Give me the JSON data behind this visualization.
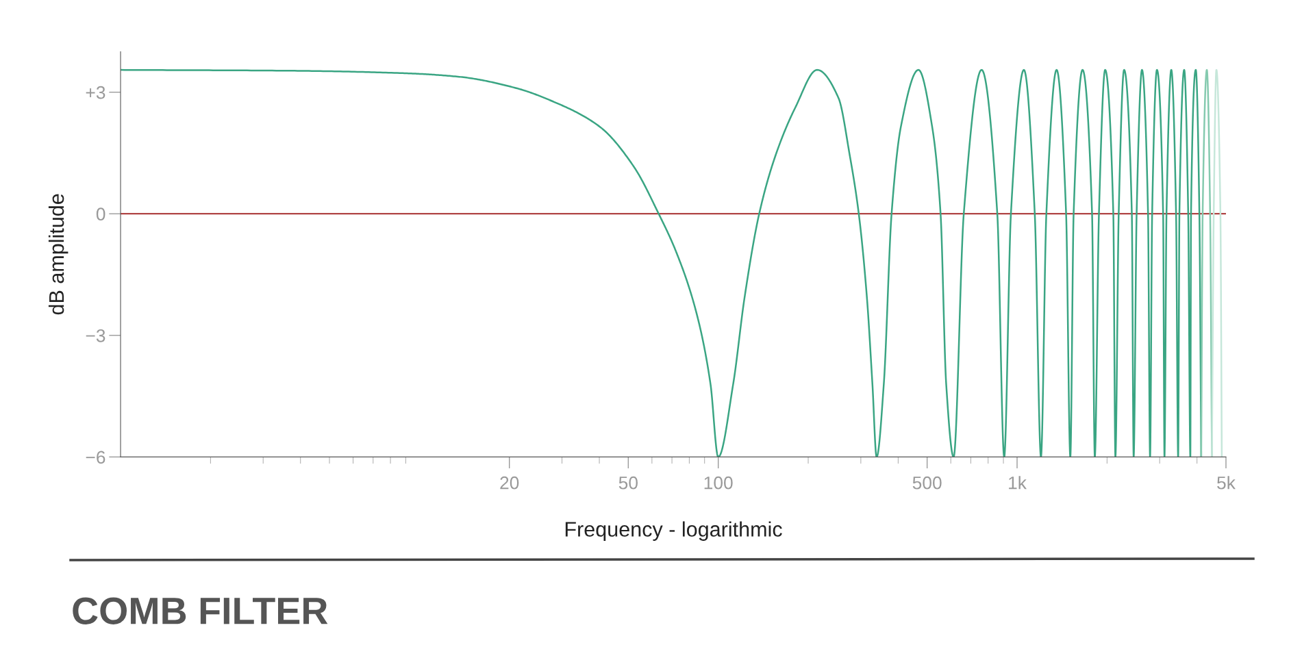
{
  "chart_data": {
    "type": "line",
    "title": "COMB FILTER",
    "xlabel": "Frequency - logarithmic",
    "ylabel": "dB amplitude",
    "log": "x",
    "xlim": [
      1,
      5000
    ],
    "ylim": [
      -6,
      4
    ],
    "xticks": [
      20,
      50,
      100,
      500,
      {
        "value": 1000,
        "label": "1k"
      },
      {
        "value": 5000,
        "label": "5k"
      }
    ],
    "yticks": [
      {
        "value": -6,
        "label": "−6"
      },
      {
        "value": -3,
        "label": "−3"
      },
      0,
      {
        "value": 3,
        "label": "+3"
      }
    ],
    "grid": false,
    "legend": false,
    "marker": "none",
    "line_style": "solid",
    "ref_lines": [
      {
        "axis": "y",
        "value": 0,
        "color": "#b04545"
      }
    ],
    "series": [
      {
        "color": "#3aa583",
        "x": [
          1,
          3.66,
          8.8,
          13.6,
          21.1,
          27.4,
          40.1,
          52.1,
          63.2,
          72.4,
          84.5,
          94.2,
          100,
          112.2,
          122.4,
          137.1,
          155.5,
          181.6,
          214.3,
          252.5,
          275.5,
          295.3,
          314.5,
          328,
          338.8,
          358.1,
          380.2,
          408.5,
          467.7,
          519.7,
          554.6,
          579.1,
          613.2,
          663.1,
          760.9,
          858.6,
          905.4,
          953.6,
          1054,
          1146,
          1202,
          1253,
          1356,
          1459,
          1507,
          1546,
          1656,
          1782,
          1820,
          1879,
          1971,
          2099,
          2133,
          2188,
          2281,
          2421,
          2455,
          2512,
          2618,
          2743,
          2786,
          2831,
          2938,
          3081,
          3113,
          3162,
          3281,
          3404,
          3459,
          3493,
          3624,
          3738,
          3800,
          3820,
          3963,
          4074,
          4132
        ],
        "values": [
          3.55,
          3.53,
          3.47,
          3.38,
          3.1,
          2.8,
          2.15,
          1.17,
          0,
          -0.95,
          -2.44,
          -4.2,
          -6,
          -4.2,
          -2.08,
          0,
          1.44,
          2.64,
          3.55,
          2.86,
          1.44,
          0,
          -2.08,
          -4.2,
          -6,
          -4.2,
          0,
          2.15,
          3.55,
          2.15,
          0,
          -4.2,
          -6,
          0,
          3.55,
          0,
          -6,
          0,
          3.55,
          0,
          -6,
          0,
          3.55,
          0,
          -6,
          0,
          3.55,
          0,
          -6,
          0,
          3.55,
          0,
          -6,
          0,
          3.55,
          0,
          -6,
          0,
          3.55,
          0,
          -6,
          0,
          3.55,
          0,
          -6,
          0,
          3.55,
          0,
          -6,
          0,
          3.55,
          0,
          -6,
          0,
          3.55,
          0,
          -6
        ]
      },
      {
        "color": "#85caaf",
        "x": [
          4132,
          4178,
          4315,
          4426,
          4487
        ],
        "values": [
          -6,
          0,
          3.55,
          0,
          -6
        ]
      },
      {
        "color": "#c6e7da",
        "x": [
          4487,
          4550,
          4645,
          4791,
          4842
        ],
        "values": [
          -6,
          0,
          3.55,
          0,
          -6
        ]
      }
    ]
  }
}
